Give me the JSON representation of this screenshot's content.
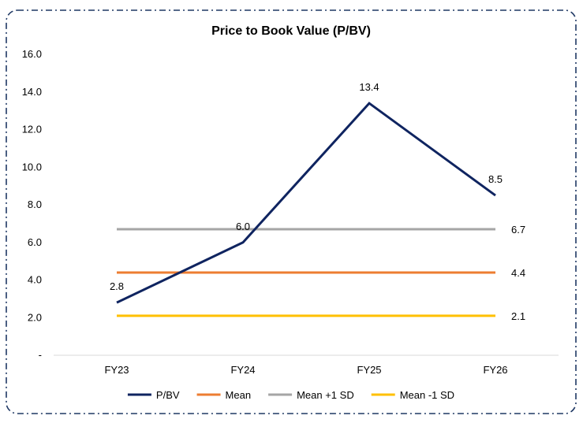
{
  "chart_data": {
    "type": "line",
    "title": "Price to Book Value (P/BV)",
    "xlabel": "",
    "ylabel": "",
    "categories": [
      "FY23",
      "FY24",
      "FY25",
      "FY26"
    ],
    "ylim": [
      0,
      16
    ],
    "yticks": [
      0,
      2,
      4,
      6,
      8,
      10,
      12,
      14,
      16
    ],
    "ytick_labels": [
      "-",
      "2.0",
      "4.0",
      "6.0",
      "8.0",
      "10.0",
      "12.0",
      "14.0",
      "16.0"
    ],
    "grid": false,
    "legend_position": "bottom",
    "series": [
      {
        "name": "P/BV",
        "values": [
          2.8,
          6.0,
          13.4,
          8.5
        ],
        "color": "#0f2460",
        "labels": [
          "2.8",
          "6.0",
          "13.4",
          "8.5"
        ],
        "label_all": true
      },
      {
        "name": "Mean",
        "values": [
          4.4,
          4.4,
          4.4,
          4.4
        ],
        "color": "#ed7d31",
        "labels": [
          "",
          "",
          "",
          "4.4"
        ],
        "label_all": false
      },
      {
        "name": "Mean +1 SD",
        "values": [
          6.7,
          6.7,
          6.7,
          6.7
        ],
        "color": "#a5a5a5",
        "labels": [
          "",
          "",
          "",
          "6.7"
        ],
        "label_all": false
      },
      {
        "name": "Mean -1 SD",
        "values": [
          2.1,
          2.1,
          2.1,
          2.1
        ],
        "color": "#ffc000",
        "labels": [
          "",
          "",
          "",
          "2.1"
        ],
        "label_all": false
      }
    ]
  },
  "frame": {
    "border_color": "#1f3864"
  }
}
